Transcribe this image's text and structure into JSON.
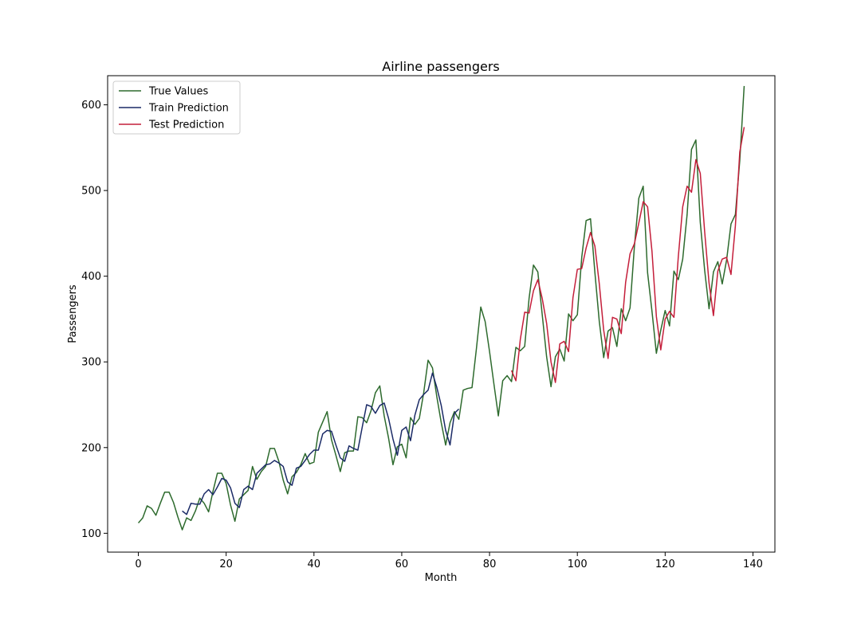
{
  "chart_data": {
    "type": "line",
    "title": "Airline passengers",
    "xlabel": "Month",
    "ylabel": "Passengers",
    "xlim": [
      -7,
      145
    ],
    "ylim": [
      78,
      634
    ],
    "xticks": [
      0,
      20,
      40,
      60,
      80,
      100,
      120,
      140
    ],
    "yticks": [
      100,
      200,
      300,
      400,
      500,
      600
    ],
    "grid": false,
    "legend_position": "top-left",
    "series": [
      {
        "name": "True Values",
        "color": "#2d6a2d",
        "x_start": 0,
        "values": [
          112,
          118,
          132,
          129,
          121,
          135,
          148,
          148,
          136,
          119,
          104,
          118,
          115,
          126,
          141,
          135,
          125,
          149,
          170,
          170,
          158,
          133,
          114,
          140,
          145,
          150,
          178,
          163,
          172,
          178,
          199,
          199,
          184,
          162,
          146,
          166,
          171,
          180,
          193,
          181,
          183,
          218,
          230,
          242,
          209,
          191,
          172,
          194,
          196,
          196,
          236,
          235,
          229,
          243,
          264,
          272,
          237,
          211,
          180,
          201,
          204,
          188,
          235,
          227,
          234,
          264,
          302,
          293,
          259,
          229,
          203,
          229,
          242,
          233,
          267,
          269,
          270,
          315,
          364,
          347,
          312,
          274,
          237,
          278,
          284,
          277,
          317,
          313,
          318,
          374,
          413,
          405,
          355,
          306,
          271,
          306,
          315,
          301,
          356,
          348,
          355,
          422,
          465,
          467,
          404,
          347,
          305,
          336,
          340,
          318,
          362,
          348,
          363,
          435,
          491,
          505,
          404,
          359,
          310,
          337,
          360,
          342,
          406,
          396,
          420,
          472,
          548,
          559,
          463,
          407,
          362,
          405,
          417,
          391,
          419,
          461,
          472,
          535,
          622
        ]
      },
      {
        "name": "Train Prediction",
        "color": "#1a2a66",
        "x_start": 10,
        "values": [
          126,
          122,
          135,
          134,
          134,
          146,
          151,
          145,
          154,
          164,
          162,
          153,
          135,
          130,
          151,
          155,
          151,
          170,
          175,
          180,
          181,
          185,
          182,
          178,
          160,
          156,
          176,
          178,
          185,
          192,
          197,
          197,
          216,
          220,
          219,
          203,
          188,
          184,
          202,
          199,
          197,
          224,
          250,
          248,
          240,
          249,
          252,
          234,
          210,
          191,
          220,
          224,
          208,
          238,
          256,
          262,
          267,
          287,
          270,
          249,
          220,
          203,
          240,
          245
        ]
      },
      {
        "name": "Test Prediction",
        "color": "#c41e3a",
        "x_start": 85,
        "values": [
          290,
          278,
          326,
          358,
          357,
          383,
          396,
          374,
          345,
          300,
          276,
          321,
          324,
          312,
          375,
          408,
          409,
          433,
          451,
          435,
          391,
          337,
          304,
          352,
          350,
          333,
          393,
          426,
          438,
          462,
          487,
          481,
          429,
          353,
          314,
          350,
          359,
          352,
          423,
          481,
          505,
          498,
          536,
          520,
          452,
          392,
          354,
          406,
          420,
          422,
          402,
          459,
          545,
          574
        ]
      }
    ]
  }
}
